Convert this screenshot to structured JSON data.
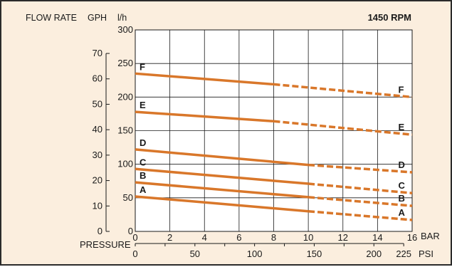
{
  "chart_data": {
    "type": "line",
    "title": "1450 RPM",
    "header_left": "FLOW RATE",
    "header_gph": "GPH",
    "header_lh": "l/h",
    "xlabel": "PRESSURE",
    "x_unit_bar": "BAR",
    "x_unit_psi": "PSI",
    "xlim_bar": [
      0,
      16
    ],
    "ylim_lh": [
      0,
      300
    ],
    "grid": true,
    "x_ticks_bar": [
      "0",
      "2",
      "4",
      "6",
      "8",
      "10",
      "12",
      "14",
      "16"
    ],
    "x_ticks_psi": [
      "0",
      "50",
      "100",
      "150",
      "200",
      "225"
    ],
    "y_ticks_lh": [
      "0",
      "50",
      "100",
      "150",
      "200",
      "250",
      "300"
    ],
    "y_ticks_gph": [
      "0",
      "10",
      "20",
      "30",
      "40",
      "50",
      "60",
      "70"
    ],
    "series": [
      {
        "name": "A",
        "x": [
          0,
          10,
          16
        ],
        "y": [
          52,
          30,
          17
        ],
        "solid_to": 10
      },
      {
        "name": "B",
        "x": [
          0,
          10,
          16
        ],
        "y": [
          73,
          51,
          38
        ],
        "solid_to": 10
      },
      {
        "name": "C",
        "x": [
          0,
          10,
          16
        ],
        "y": [
          93,
          71,
          57
        ],
        "solid_to": 10
      },
      {
        "name": "D",
        "x": [
          0,
          10,
          16
        ],
        "y": [
          122,
          99,
          88
        ],
        "solid_to": 10
      },
      {
        "name": "E",
        "x": [
          0,
          8,
          16
        ],
        "y": [
          178,
          164,
          144
        ],
        "solid_to": 8
      },
      {
        "name": "F",
        "x": [
          0,
          8,
          16
        ],
        "y": [
          235,
          219,
          200
        ],
        "solid_to": 8
      }
    ],
    "line_color": "#d9772a"
  }
}
